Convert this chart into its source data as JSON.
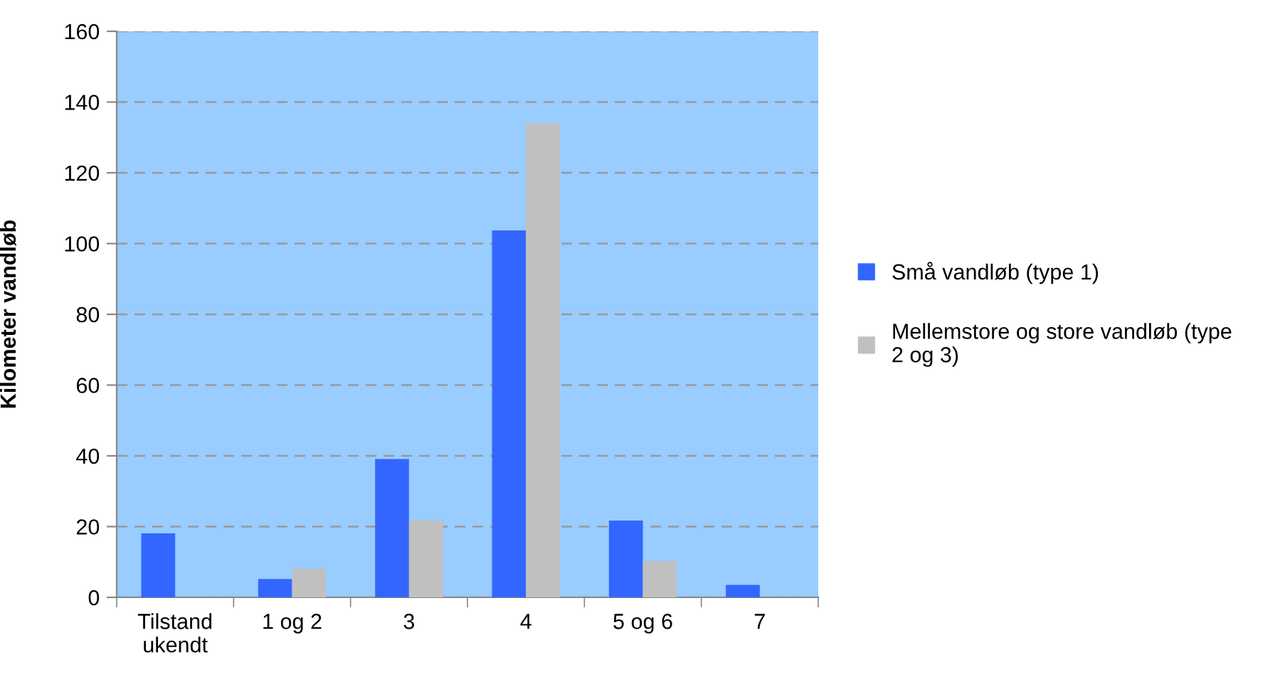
{
  "chart_data": {
    "type": "bar",
    "ylabel": "Kilometer vandløb",
    "categories": [
      "Tilstand\nukendt",
      "1 og 2",
      "3",
      "4",
      "5 og 6",
      "7"
    ],
    "series": [
      {
        "name": "Små vandløb (type 1)",
        "color": "#3366ff",
        "values": [
          18.1,
          5.2,
          39.1,
          103.7,
          21.7,
          3.5
        ]
      },
      {
        "name": "Mellemstore og store vandløb (type\n2 og 3)",
        "color": "#c0c0c0",
        "values": [
          null,
          8.1,
          21.7,
          134,
          10.2,
          null
        ]
      }
    ],
    "ylim": [
      0,
      160
    ],
    "yticks": [
      0,
      20,
      40,
      60,
      80,
      100,
      120,
      140,
      160
    ],
    "grid": "y",
    "legend": "right"
  }
}
